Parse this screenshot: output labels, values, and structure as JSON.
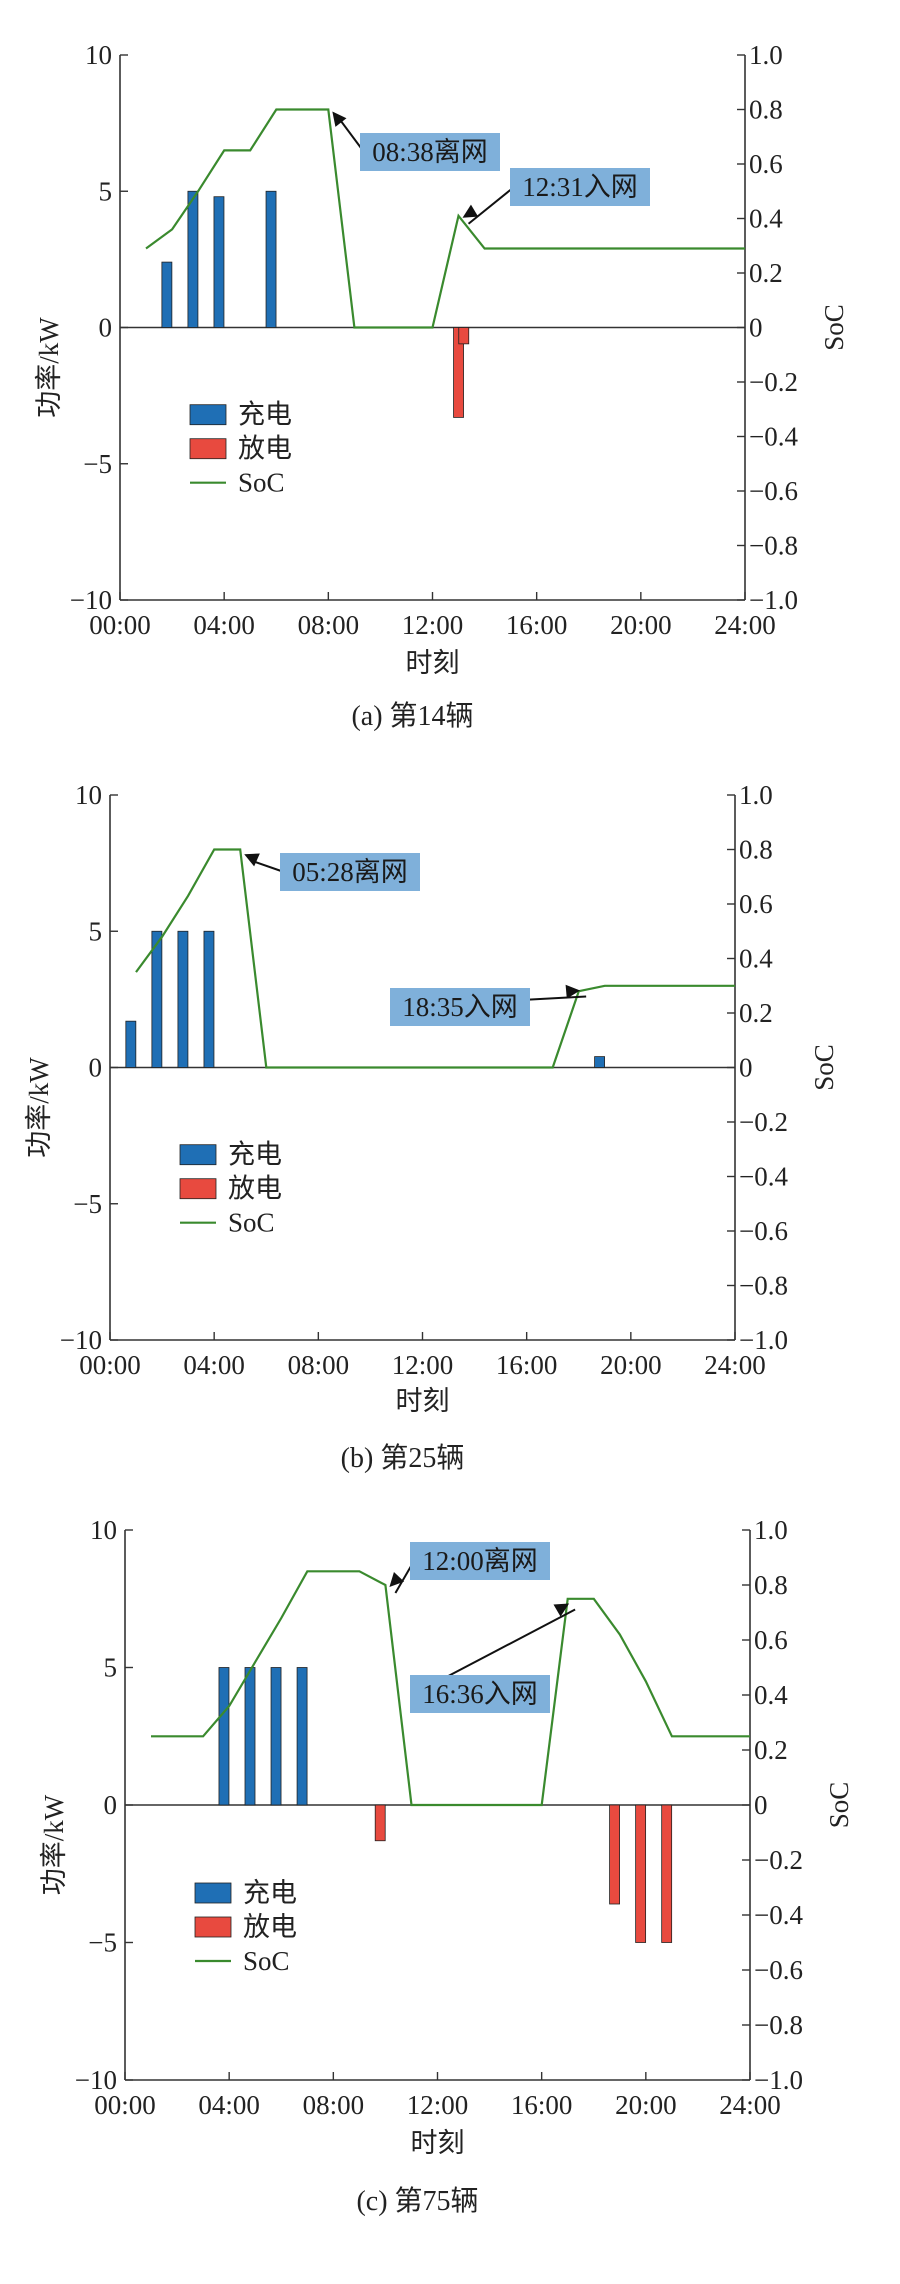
{
  "colors": {
    "charge": "#1f6fb5",
    "discharge": "#e84a3f",
    "soc": "#3a8a2e",
    "annotation_bg": "#7fb0da",
    "axis": "#333333"
  },
  "chart_data": [
    {
      "type": "bar",
      "caption": "(a) 第14辆",
      "xlabel": "时刻",
      "ylabel": "功率/kW",
      "y2label": "SoC",
      "x_ticks": [
        "00:00",
        "04:00",
        "08:00",
        "12:00",
        "16:00",
        "20:00",
        "24:00"
      ],
      "y_ticks": [
        "10",
        "5",
        "0",
        "−5",
        "−10"
      ],
      "y2_ticks": [
        "1.0",
        "0.8",
        "0.6",
        "0.4",
        "0.2",
        "0",
        "−0.2",
        "−0.4",
        "−0.6",
        "−0.8",
        "−1.0"
      ],
      "xlim": [
        0,
        24
      ],
      "ylim": [
        -10,
        10
      ],
      "y2lim": [
        -1,
        1
      ],
      "legend": [
        "充电",
        "放电",
        "SoC"
      ],
      "legend_position": "lower-left",
      "series": [
        {
          "name": "充电",
          "kind": "bar",
          "points": [
            [
              1.8,
              2.4
            ],
            [
              2.8,
              5.0
            ],
            [
              3.8,
              4.8
            ],
            [
              5.8,
              5.0
            ]
          ]
        },
        {
          "name": "放电",
          "kind": "bar",
          "points": [
            [
              13.0,
              -3.3
            ],
            [
              13.2,
              -0.6
            ]
          ]
        },
        {
          "name": "SoC",
          "kind": "line",
          "points": [
            [
              1.0,
              0.29
            ],
            [
              2.0,
              0.36
            ],
            [
              3.0,
              0.5
            ],
            [
              4.0,
              0.65
            ],
            [
              5.0,
              0.65
            ],
            [
              6.0,
              0.8
            ],
            [
              8.0,
              0.8
            ],
            [
              9.0,
              0.0
            ],
            [
              12.0,
              0.0
            ],
            [
              13.0,
              0.41
            ],
            [
              14.0,
              0.29
            ],
            [
              24.0,
              0.29
            ]
          ]
        }
      ],
      "annotations": [
        {
          "text": "08:38离网",
          "x": 8.0,
          "y": 0.8
        },
        {
          "text": "12:31入网",
          "x": 13.0,
          "y": 0.41
        }
      ]
    },
    {
      "type": "bar",
      "caption": "(b) 第25辆",
      "xlabel": "时刻",
      "ylabel": "功率/kW",
      "y2label": "SoC",
      "x_ticks": [
        "00:00",
        "04:00",
        "08:00",
        "12:00",
        "16:00",
        "20:00",
        "24:00"
      ],
      "y_ticks": [
        "10",
        "5",
        "0",
        "−5",
        "−10"
      ],
      "y2_ticks": [
        "1.0",
        "0.8",
        "0.6",
        "0.4",
        "0.2",
        "0",
        "−0.2",
        "−0.4",
        "−0.6",
        "−0.8",
        "−1.0"
      ],
      "xlim": [
        0,
        24
      ],
      "ylim": [
        -10,
        10
      ],
      "y2lim": [
        -1,
        1
      ],
      "legend": [
        "充电",
        "放电",
        "SoC"
      ],
      "legend_position": "lower-left",
      "series": [
        {
          "name": "充电",
          "kind": "bar",
          "points": [
            [
              0.8,
              1.7
            ],
            [
              1.8,
              5.0
            ],
            [
              2.8,
              5.0
            ],
            [
              3.8,
              5.0
            ],
            [
              18.8,
              0.4
            ]
          ]
        },
        {
          "name": "放电",
          "kind": "bar",
          "points": []
        },
        {
          "name": "SoC",
          "kind": "line",
          "points": [
            [
              1.0,
              0.35
            ],
            [
              2.0,
              0.48
            ],
            [
              3.0,
              0.63
            ],
            [
              4.0,
              0.8
            ],
            [
              5.0,
              0.8
            ],
            [
              6.0,
              0.0
            ],
            [
              17.0,
              0.0
            ],
            [
              18.0,
              0.28
            ],
            [
              19.0,
              0.3
            ],
            [
              24.0,
              0.3
            ]
          ]
        }
      ],
      "annotations": [
        {
          "text": "05:28离网",
          "x": 5.0,
          "y": 0.79
        },
        {
          "text": "18:35入网",
          "x": 17.9,
          "y": 0.29
        }
      ]
    },
    {
      "type": "bar",
      "caption": "(c) 第75辆",
      "xlabel": "时刻",
      "ylabel": "功率/kW",
      "y2label": "SoC",
      "x_ticks": [
        "00:00",
        "04:00",
        "08:00",
        "12:00",
        "16:00",
        "20:00",
        "24:00"
      ],
      "y_ticks": [
        "10",
        "5",
        "0",
        "−5",
        "−10"
      ],
      "y2_ticks": [
        "1.0",
        "0.8",
        "0.6",
        "0.4",
        "0.2",
        "0",
        "−0.2",
        "−0.4",
        "−0.6",
        "−0.8",
        "−1.0"
      ],
      "xlim": [
        0,
        24
      ],
      "ylim": [
        -10,
        10
      ],
      "y2lim": [
        -1,
        1
      ],
      "legend": [
        "充电",
        "放电",
        "SoC"
      ],
      "legend_position": "lower-left",
      "series": [
        {
          "name": "充电",
          "kind": "bar",
          "points": [
            [
              3.8,
              5.0
            ],
            [
              4.8,
              5.0
            ],
            [
              5.8,
              5.0
            ],
            [
              6.8,
              5.0
            ]
          ]
        },
        {
          "name": "放电",
          "kind": "bar",
          "points": [
            [
              9.8,
              -1.3
            ],
            [
              18.8,
              -3.6
            ],
            [
              19.8,
              -5.0
            ],
            [
              20.8,
              -5.0
            ]
          ]
        },
        {
          "name": "SoC",
          "kind": "line",
          "points": [
            [
              1.0,
              0.25
            ],
            [
              3.0,
              0.25
            ],
            [
              4.0,
              0.36
            ],
            [
              5.0,
              0.52
            ],
            [
              6.0,
              0.68
            ],
            [
              7.0,
              0.85
            ],
            [
              9.0,
              0.85
            ],
            [
              10.0,
              0.8
            ],
            [
              11.0,
              0.0
            ],
            [
              16.0,
              0.0
            ],
            [
              17.0,
              0.75
            ],
            [
              18.0,
              0.75
            ],
            [
              19.0,
              0.62
            ],
            [
              20.0,
              0.45
            ],
            [
              21.0,
              0.25
            ],
            [
              24.0,
              0.25
            ]
          ]
        }
      ],
      "annotations": [
        {
          "text": "12:00离网",
          "x": 10.0,
          "y": 0.8
        },
        {
          "text": "16:36入网",
          "x": 16.9,
          "y": 0.74
        }
      ]
    }
  ]
}
